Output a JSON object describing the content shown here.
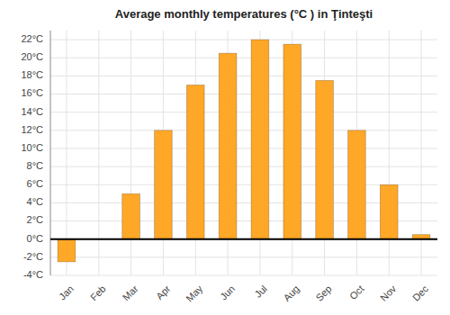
{
  "chart_data": {
    "type": "bar",
    "title": "Average monthly temperatures (°C ) in Ţinteşti",
    "categories": [
      "Jan",
      "Feb",
      "Mar",
      "Apr",
      "May",
      "Jun",
      "Jul",
      "Aug",
      "Sep",
      "Oct",
      "Nov",
      "Dec"
    ],
    "values": [
      -2.5,
      0.0,
      5.0,
      12.0,
      17.0,
      20.5,
      22.0,
      21.5,
      17.5,
      12.0,
      6.0,
      0.5
    ],
    "color": "#FFA726",
    "ylim": [
      -4,
      23
    ],
    "yticks": [
      {
        "value": -4,
        "label": "-4°C"
      },
      {
        "value": -2,
        "label": "-2°C"
      },
      {
        "value": 0,
        "label": "0°C"
      },
      {
        "value": 2,
        "label": "2°C"
      },
      {
        "value": 4,
        "label": "4°C"
      },
      {
        "value": 6,
        "label": "6°C"
      },
      {
        "value": 8,
        "label": "8°C"
      },
      {
        "value": 10,
        "label": "10°C"
      },
      {
        "value": 12,
        "label": "12°C"
      },
      {
        "value": 14,
        "label": "14°C"
      },
      {
        "value": 16,
        "label": "16°C"
      },
      {
        "value": 18,
        "label": "18°C"
      },
      {
        "value": 20,
        "label": "20°C"
      },
      {
        "value": 22,
        "label": "22°C"
      }
    ],
    "grid": true
  }
}
